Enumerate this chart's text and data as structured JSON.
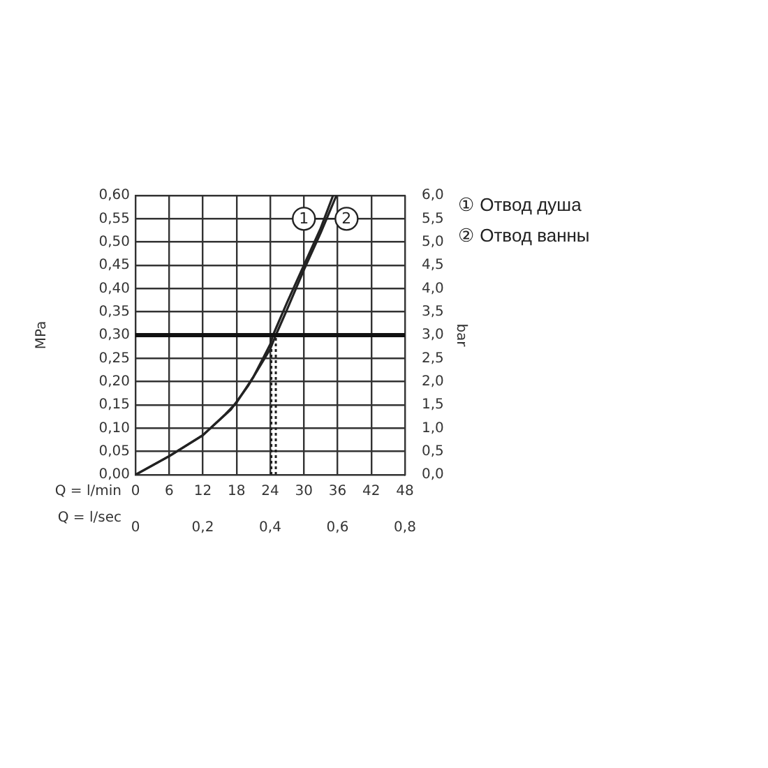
{
  "chart_data": {
    "type": "line",
    "xlabel": "Q = l/min",
    "x2label": "Q = l/sec",
    "ylabel": "MPa",
    "y2label": "bar",
    "xlim": [
      0,
      48
    ],
    "xticks": [
      0,
      6,
      12,
      18,
      24,
      30,
      36,
      42,
      48
    ],
    "x2lim": [
      0,
      0.8
    ],
    "x2ticks": [
      0,
      {
        "value": 0.2,
        "label": "0,2"
      },
      {
        "value": 0.4,
        "label": "0,4"
      },
      {
        "value": 0.6,
        "label": "0,6"
      },
      {
        "value": 0.8,
        "label": "0,8"
      }
    ],
    "ylim": [
      0,
      0.6
    ],
    "yticks": [
      {
        "value": 0,
        "label": "0,00"
      },
      {
        "value": 0.05,
        "label": "0,05"
      },
      {
        "value": 0.1,
        "label": "0,10"
      },
      {
        "value": 0.15,
        "label": "0,15"
      },
      {
        "value": 0.2,
        "label": "0,20"
      },
      {
        "value": 0.25,
        "label": "0,25"
      },
      {
        "value": 0.3,
        "label": "0,30"
      },
      {
        "value": 0.35,
        "label": "0,35"
      },
      {
        "value": 0.4,
        "label": "0,40"
      },
      {
        "value": 0.45,
        "label": "0,45"
      },
      {
        "value": 0.5,
        "label": "0,50"
      },
      {
        "value": 0.55,
        "label": "0,55"
      },
      {
        "value": 0.6,
        "label": "0,60"
      }
    ],
    "y2lim": [
      0,
      6
    ],
    "y2ticks": [
      {
        "value": 0,
        "label": "0,0"
      },
      {
        "value": 0.5,
        "label": "0,5"
      },
      {
        "value": 1,
        "label": "1,0"
      },
      {
        "value": 1.5,
        "label": "1,5"
      },
      {
        "value": 2,
        "label": "2,0"
      },
      {
        "value": 2.5,
        "label": "2,5"
      },
      {
        "value": 3,
        "label": "3,0"
      },
      {
        "value": 3.5,
        "label": "3,5"
      },
      {
        "value": 4,
        "label": "4,0"
      },
      {
        "value": 4.5,
        "label": "4,5"
      },
      {
        "value": 5,
        "label": "5,0"
      },
      {
        "value": 5.5,
        "label": "5,5"
      },
      {
        "value": 6,
        "label": "6,0"
      }
    ],
    "grid": true,
    "legend": "top right",
    "marker": "none",
    "line_style": "solid",
    "series": [
      {
        "name": "① Отвод душа",
        "color": "#222222",
        "x": [
          0,
          6,
          12,
          16,
          18,
          21,
          24,
          24.5,
          27,
          30,
          33,
          35.2
        ],
        "values": [
          0,
          0.04,
          0.085,
          0.13,
          0.155,
          0.21,
          0.28,
          0.3,
          0.37,
          0.45,
          0.53,
          0.6
        ]
      },
      {
        "name": "② Отвод ванны",
        "color": "#222222",
        "x": [
          0,
          6,
          12,
          17,
          20,
          24,
          25,
          27,
          30,
          33,
          35.8
        ],
        "values": [
          0,
          0.04,
          0.085,
          0.14,
          0.19,
          0.27,
          0.3,
          0.355,
          0.44,
          0.52,
          0.6
        ]
      }
    ],
    "ref_lines": [
      {
        "axis": "y",
        "value": 0.3,
        "color": "#111111"
      },
      {
        "axis": "x",
        "value": 24.2,
        "line_style": "dotted",
        "color": "#222222"
      },
      {
        "axis": "x",
        "value": 25,
        "line_style": "dotted",
        "color": "#222222"
      }
    ],
    "annotations": [
      {
        "text": "1",
        "x": 30,
        "y": 0.55
      },
      {
        "text": "2",
        "x": 37.6,
        "y": 0.55
      }
    ]
  }
}
